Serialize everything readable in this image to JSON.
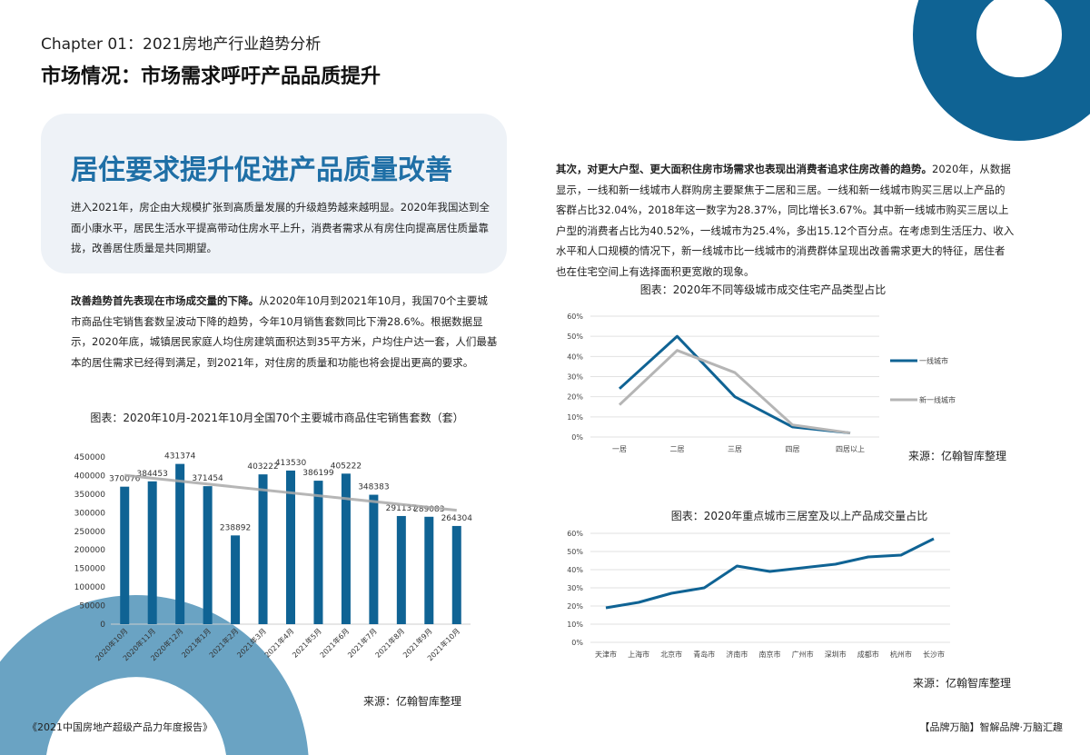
{
  "header": {
    "chapter": "Chapter 01：2021房地产行业趋势分析",
    "headline": "市场情况：市场需求呼吁产品品质提升"
  },
  "intro": {
    "title": "居住要求提升促进产品质量改善",
    "text": "进入2021年，房企由大规模扩张到高质量发展的升级趋势越来越明显。2020年我国达到全面小康水平，居民生活水平提高带动住房水平上升，消费者需求从有房住向提高居住质量靠拢，改善居住质量是共同期望。"
  },
  "para2": {
    "lead": "改善趋势首先表现在市场成交量的下降。",
    "text": "从2020年10月到2021年10月，我国70个主要城市商品住宅销售套数呈波动下降的趋势，今年10月销售套数同比下滑28.6%。根据数据显示，2020年底，城镇居民家庭人均住房建筑面积达到35平方米，户均住户达一套，人们最基本的居住需求已经得到满足，到2021年，对住房的质量和功能也将会提出更高的要求。"
  },
  "para3": {
    "lead": "其次，对更大户型、更大面积住房市场需求也表现出消费者追求住房改善的趋势。",
    "text": "2020年，从数据显示，一线和新一线城市人群购房主要聚焦于二居和三居。一线和新一线城市购买三居以上产品的客群占比32.04%，2018年这一数字为28.37%，同比增长3.67%。其中新一线城市购买三居以上户型的消费者占比为40.52%，一线城市为25.4%，多出15.12个百分点。在考虑到生活压力、收入水平和人口规模的情况下，新一线城市比一线城市的消费群体呈现出改善需求更大的特征，居住者也在住宅空间上有选择面积更宽敞的现象。"
  },
  "footer": {
    "left": "《2021中国房地产超级产品力年度报告》",
    "right": "【品牌万脑】智解品牌·万脑汇趣"
  },
  "colors": {
    "accent": "#1f6fa6",
    "bar": "#0f6394",
    "gray": "#b5b5b5",
    "decor_light": "#6aa3c3",
    "box": "#eef2f7"
  },
  "chart_data": [
    {
      "type": "bar",
      "title": "图表：2020年10月-2021年10月全国70个主要城市商品住宅销售套数（套）",
      "categories": [
        "2020年10月",
        "2020年11月",
        "2020年12月",
        "2021年1月",
        "2021年2月",
        "2021年3月",
        "2021年4月",
        "2021年5月",
        "2021年6月",
        "2021年7月",
        "2021年8月",
        "2021年9月",
        "2021年10月"
      ],
      "values": [
        370076,
        384453,
        431374,
        371454,
        238892,
        403222,
        413530,
        386199,
        405222,
        348383,
        291137,
        289083,
        264304
      ],
      "yticks": [
        "0",
        "50000",
        "100000",
        "150000",
        "200000",
        "250000",
        "300000",
        "350000",
        "400000",
        "450000"
      ],
      "ylim": [
        0,
        450000
      ],
      "trendline": "linear",
      "source": "来源：亿翰智库整理"
    },
    {
      "type": "line",
      "title": "图表：2020年不同等级城市成交住宅产品类型占比",
      "categories": [
        "一居",
        "二居",
        "三居",
        "四居",
        "四居以上"
      ],
      "series": [
        {
          "name": "一线城市",
          "values": [
            24,
            50,
            20,
            5,
            2
          ],
          "color": "#0f6394"
        },
        {
          "name": "新一线城市",
          "values": [
            16,
            43,
            32,
            6,
            2
          ],
          "color": "#b5b5b5"
        }
      ],
      "yticks": [
        "0%",
        "10%",
        "20%",
        "30%",
        "40%",
        "50%",
        "60%"
      ],
      "ylim": [
        0,
        60
      ],
      "legend": "right",
      "grid": true,
      "source": "来源：亿翰智库整理"
    },
    {
      "type": "line",
      "title": "图表：2020年重点城市三居室及以上产品成交量占比",
      "categories": [
        "天津市",
        "上海市",
        "北京市",
        "青岛市",
        "济南市",
        "南京市",
        "广州市",
        "深圳市",
        "成都市",
        "杭州市",
        "长沙市"
      ],
      "series": [
        {
          "values": [
            19,
            22,
            27,
            30,
            42,
            39,
            41,
            43,
            47,
            48,
            57
          ],
          "color": "#0f6394"
        }
      ],
      "yticks": [
        "0%",
        "10%",
        "20%",
        "30%",
        "40%",
        "50%",
        "60%"
      ],
      "ylim": [
        0,
        60
      ],
      "grid": true,
      "source": "来源：亿翰智库整理"
    }
  ]
}
